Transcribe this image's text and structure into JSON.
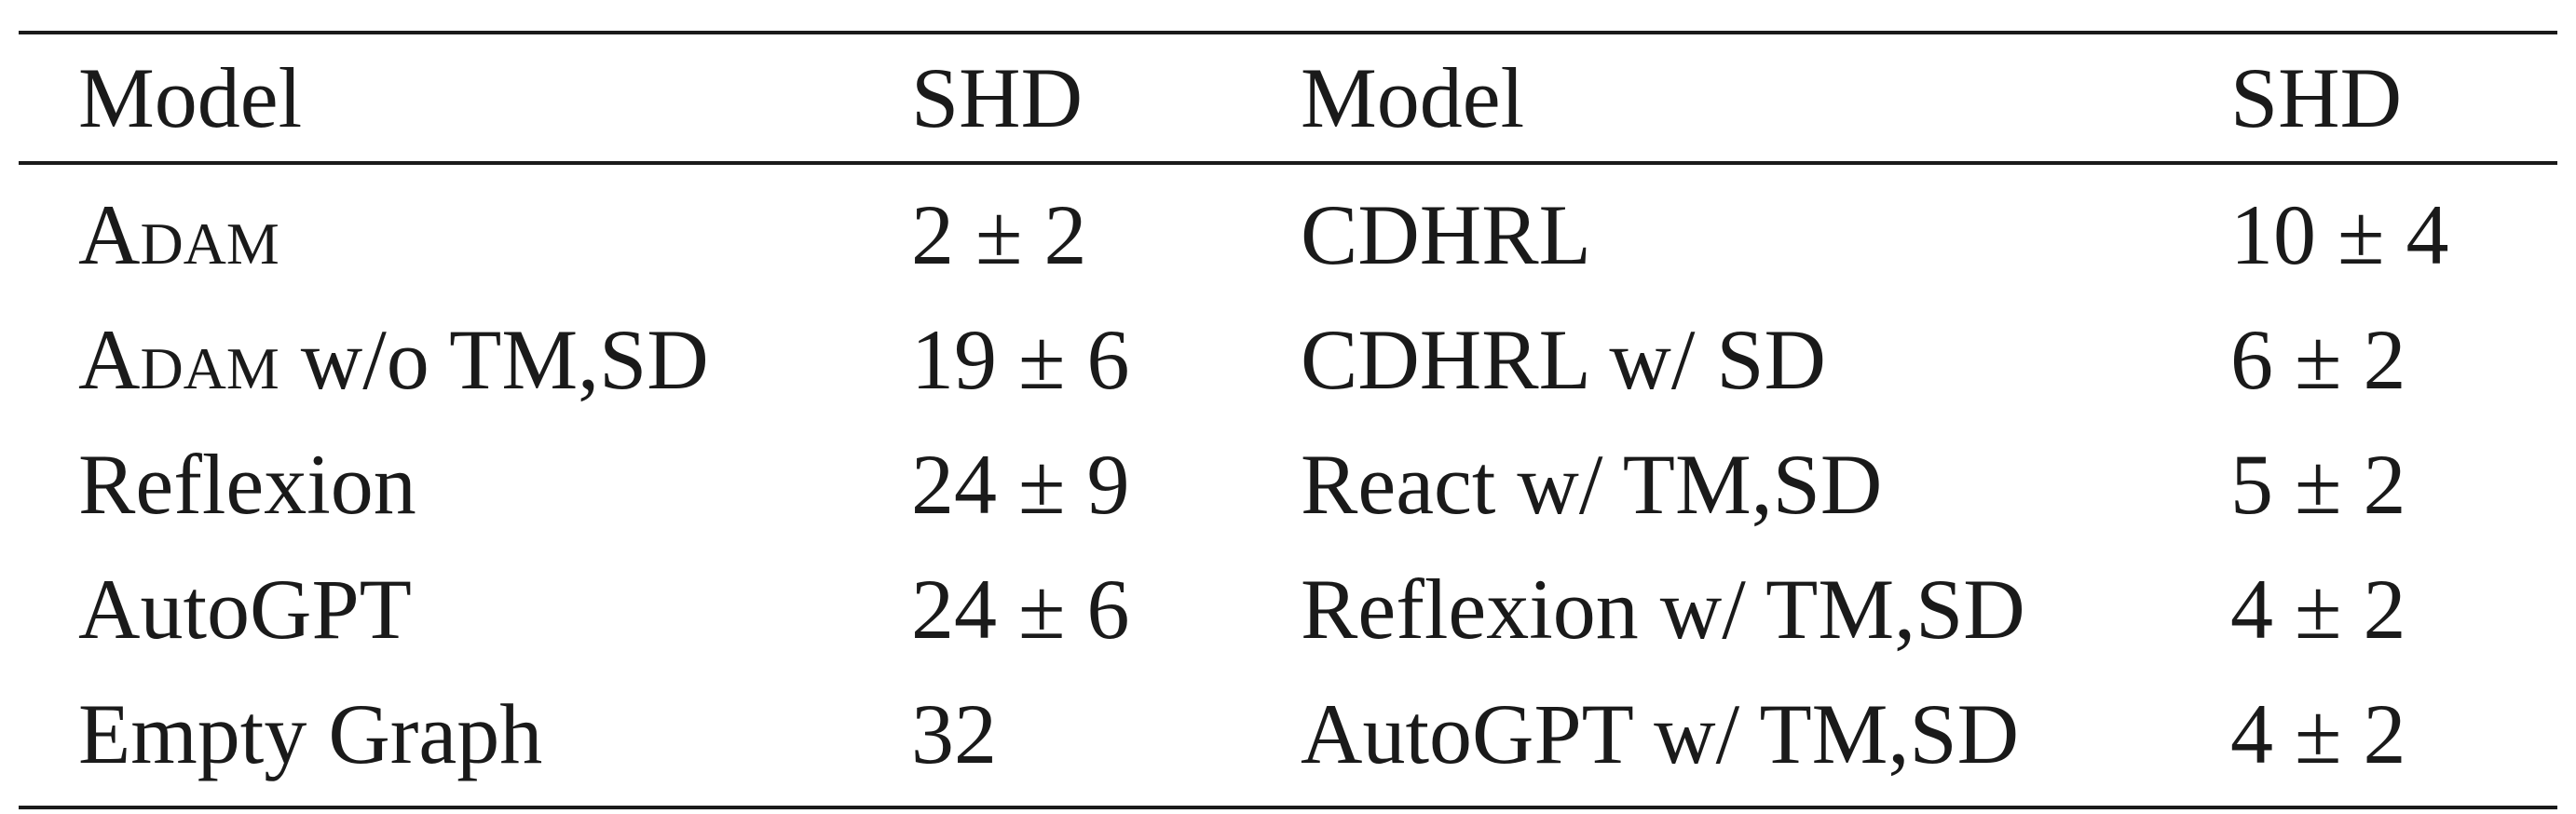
{
  "table": {
    "headers": [
      "Model",
      "SHD",
      "Model",
      "SHD"
    ],
    "rows": [
      {
        "model_left": "Adam",
        "model_left_suffix": "",
        "shd_left": "2 ± 2",
        "model_right": "CDHRL",
        "shd_right": "10 ± 4"
      },
      {
        "model_left": "Adam",
        "model_left_suffix": " w/o TM,SD",
        "shd_left": "19 ± 6",
        "model_right": "CDHRL w/ SD",
        "shd_right": "6 ± 2"
      },
      {
        "model_left": "",
        "model_left_suffix": "Reflexion",
        "shd_left": "24 ± 9",
        "model_right": "React w/ TM,SD",
        "shd_right": "5 ± 2"
      },
      {
        "model_left": "",
        "model_left_suffix": "AutoGPT",
        "shd_left": "24 ± 6",
        "model_right": "Reflexion w/ TM,SD",
        "shd_right": "4 ± 2"
      },
      {
        "model_left": "",
        "model_left_suffix": "Empty Graph",
        "shd_left": "32",
        "model_right": "AutoGPT w/ TM,SD",
        "shd_right": "4 ± 2"
      }
    ]
  }
}
